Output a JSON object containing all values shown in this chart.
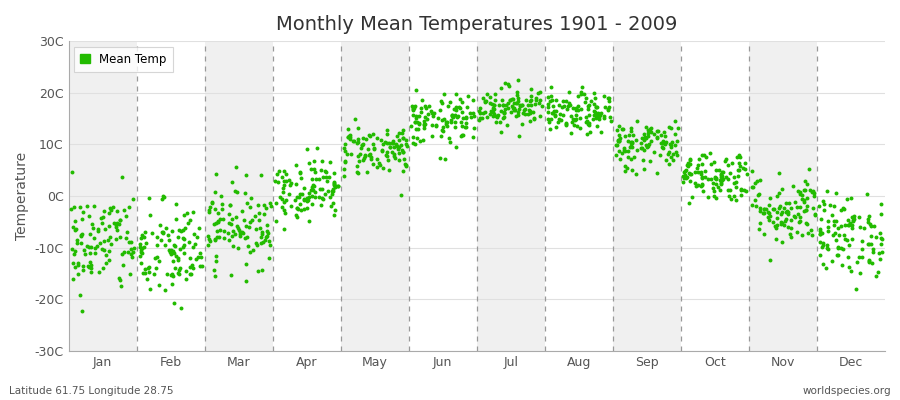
{
  "title": "Monthly Mean Temperatures 1901 - 2009",
  "ylabel": "Temperature",
  "bottom_left_text": "Latitude 61.75 Longitude 28.75",
  "bottom_right_text": "worldspecies.org",
  "legend_label": "Mean Temp",
  "dot_color": "#22bb00",
  "dot_size": 8,
  "years": 109,
  "start_year": 1901,
  "end_year": 2009,
  "ylim": [
    -30,
    30
  ],
  "yticks": [
    -30,
    -20,
    -10,
    0,
    10,
    20,
    30
  ],
  "ytick_labels": [
    "-30C",
    "-20C",
    "-10C",
    "0C",
    "10C",
    "20C",
    "30C"
  ],
  "months": [
    "Jan",
    "Feb",
    "Mar",
    "Apr",
    "May",
    "Jun",
    "Jul",
    "Aug",
    "Sep",
    "Oct",
    "Nov",
    "Dec"
  ],
  "mean_temps": [
    -9.0,
    -11.0,
    -5.5,
    1.5,
    9.0,
    14.5,
    17.5,
    16.0,
    10.0,
    4.0,
    -2.5,
    -7.5
  ],
  "std_temps": [
    5.0,
    5.0,
    4.0,
    3.0,
    2.5,
    2.5,
    2.0,
    2.0,
    2.5,
    2.5,
    3.5,
    4.0
  ],
  "band_colors": [
    "#f0f0f0",
    "#ffffff"
  ],
  "dashed_line_color": "#999999",
  "grid_h_color": "#e0e0e0",
  "fig_bg_color": "#ffffff",
  "plot_bg_color": "#f5f5f5",
  "spine_color": "#aaaaaa",
  "tick_color": "#555555",
  "title_fontsize": 14,
  "axis_fontsize": 9,
  "ylabel_fontsize": 10
}
